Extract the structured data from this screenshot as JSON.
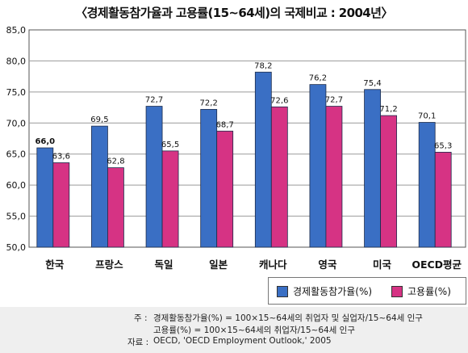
{
  "title": "〈경제활동참가율과 고용률(15~64세)의 국제비교 : 2004년〉",
  "colors": {
    "participation": "#3a6fc4",
    "employment": "#d63384"
  },
  "chart_data": {
    "type": "bar",
    "categories": [
      "한국",
      "프랑스",
      "독일",
      "일본",
      "캐나다",
      "영국",
      "미국",
      "OECD평균"
    ],
    "series": [
      {
        "name": "경제활동참가율(%)",
        "values": [
          66.0,
          69.5,
          72.7,
          72.2,
          78.2,
          76.2,
          75.4,
          70.1
        ],
        "labels": [
          "66,0",
          "69,5",
          "72,7",
          "72,2",
          "78,2",
          "76,2",
          "75,4",
          "70,1"
        ]
      },
      {
        "name": "고용률(%)",
        "values": [
          63.6,
          62.8,
          65.5,
          68.7,
          72.6,
          72.7,
          71.2,
          65.3
        ],
        "labels": [
          "63,6",
          "62,8",
          "65,5",
          "68,7",
          "72,6",
          "72,7",
          "71,2",
          "65,3"
        ]
      }
    ],
    "ylim": [
      50,
      85
    ],
    "yticks": [
      50,
      55,
      60,
      65,
      70,
      75,
      80,
      85
    ],
    "ytick_labels": [
      "50,0",
      "55,0",
      "60,0",
      "65,0",
      "70,0",
      "75,0",
      "80,0",
      "85,0"
    ],
    "grid": true,
    "legend": "bottom-right"
  },
  "legend": {
    "participation": "경제활동참가율(%)",
    "employment": "고용률(%)"
  },
  "notes": {
    "note_prefix": "주 :",
    "note_line1": "경제활동참가율(%) = 100×15~64세의 취업자 및 실업자/15~64세 인구",
    "note_line2": "고용률(%) = 100×15~64세의 취업자/15~64세 인구",
    "source_prefix": "자료 :",
    "source": "OECD, 'OECD Employment Outlook,' 2005"
  }
}
